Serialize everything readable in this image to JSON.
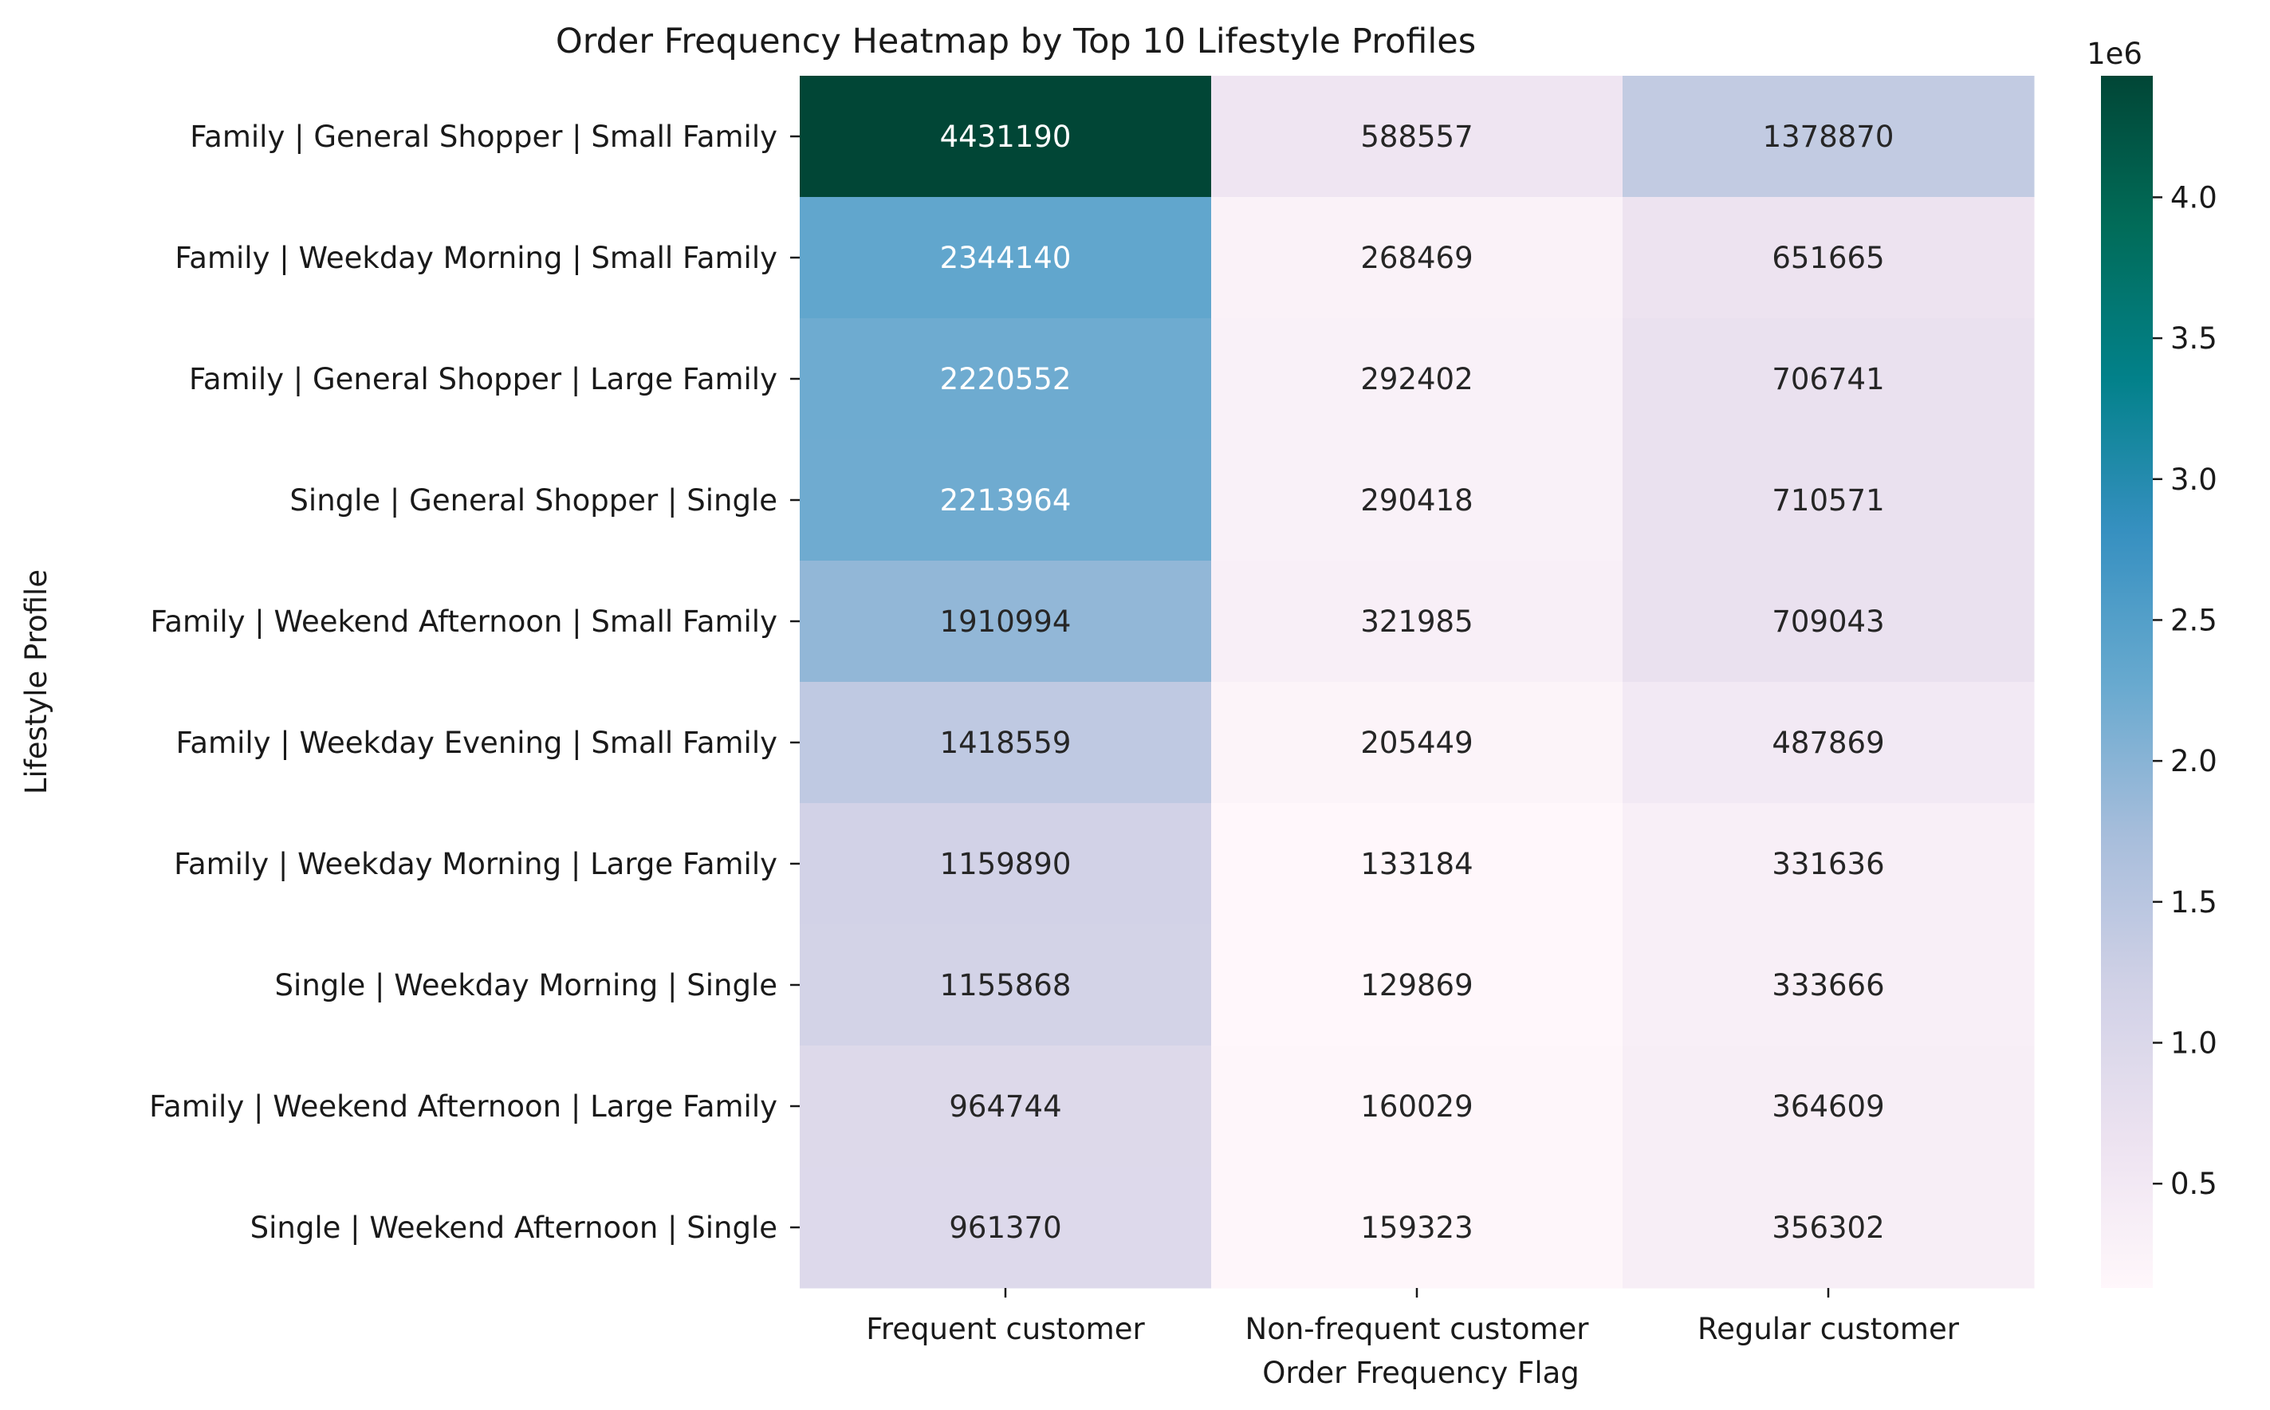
{
  "chart_data": {
    "type": "heatmap",
    "title": "Order Frequency Heatmap by Top 10 Lifestyle Profiles",
    "xlabel": "Order Frequency Flag",
    "ylabel": "Lifestyle Profile",
    "columns": [
      "Frequent customer",
      "Non-frequent customer",
      "Regular customer"
    ],
    "rows": [
      "Family | General Shopper | Small Family",
      "Family | Weekday Morning | Small Family",
      "Family | General Shopper | Large Family",
      "Single | General Shopper | Single",
      "Family | Weekend Afternoon | Small Family",
      "Family | Weekday Evening | Small Family",
      "Family | Weekday Morning | Large Family",
      "Single | Weekday Morning | Single",
      "Family | Weekend Afternoon | Large Family",
      "Single | Weekend Afternoon | Single"
    ],
    "values": [
      [
        4431190,
        588557,
        1378870
      ],
      [
        2344140,
        268469,
        651665
      ],
      [
        2220552,
        292402,
        706741
      ],
      [
        2213964,
        290418,
        710571
      ],
      [
        1910994,
        321985,
        709043
      ],
      [
        1418559,
        205449,
        487869
      ],
      [
        1159890,
        133184,
        331636
      ],
      [
        1155868,
        129869,
        333666
      ],
      [
        964744,
        160029,
        364609
      ],
      [
        961370,
        159323,
        356302
      ]
    ],
    "colormap": "PuBuGn",
    "colorbar": {
      "min": 129869,
      "max": 4431190,
      "scale_label": "1e6",
      "ticks": [
        0.5,
        1.0,
        1.5,
        2.0,
        2.5,
        3.0,
        3.5,
        4.0
      ],
      "tick_labels": [
        "0.5",
        "1.0",
        "1.5",
        "2.0",
        "2.5",
        "3.0",
        "3.5",
        "4.0"
      ],
      "tick_multiplier": 1000000
    },
    "grid": false,
    "legend": "colorbar-right"
  }
}
